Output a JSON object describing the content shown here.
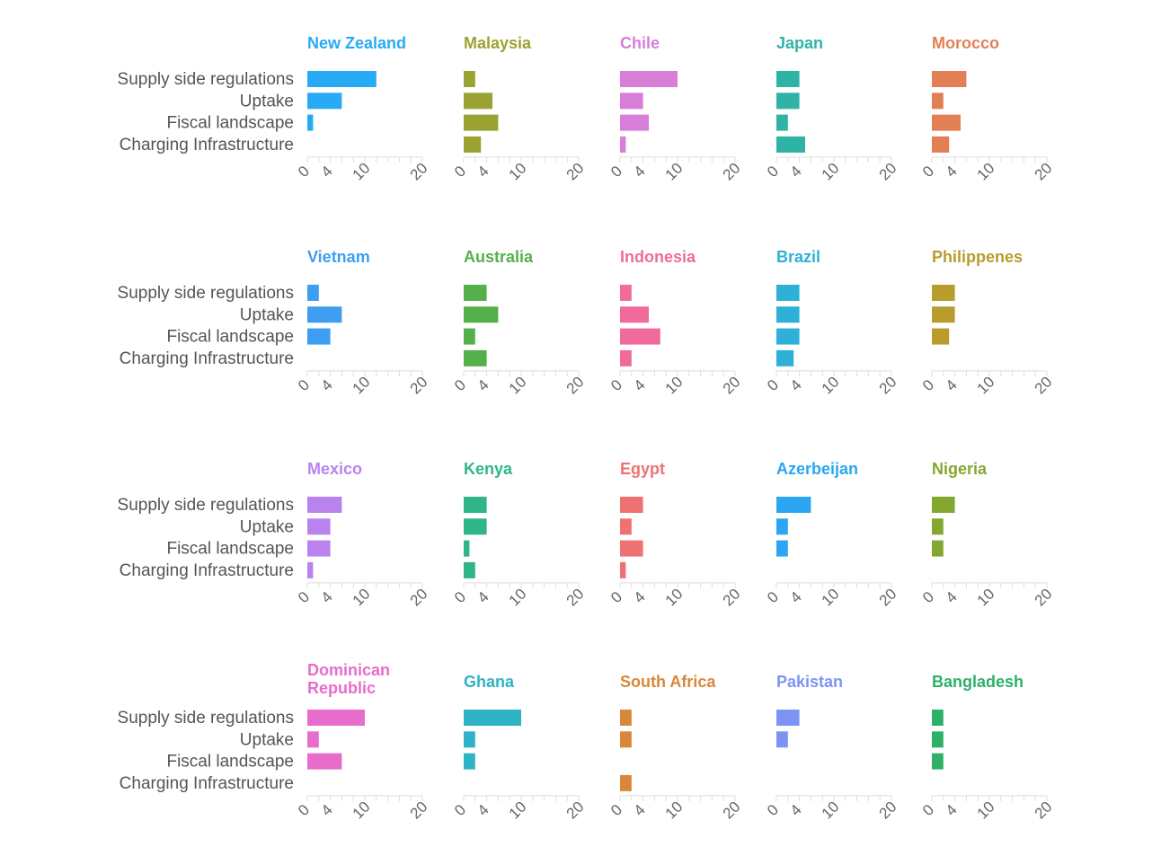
{
  "chart_data": {
    "type": "bar",
    "orientation": "horizontal",
    "layout": "small-multiples",
    "categories": [
      "Supply side regulations",
      "Uptake",
      "Fiscal landscape",
      "Charging Infrastructure"
    ],
    "xticks": [
      "0",
      "4",
      "10",
      "20"
    ],
    "xlim": [
      0,
      20
    ],
    "panels": [
      {
        "title": "New Zealand",
        "color": "#29aaf4",
        "values": [
          12,
          6,
          1,
          0
        ]
      },
      {
        "title": "Malaysia",
        "color": "#9aa332",
        "values": [
          2,
          5,
          6,
          3
        ]
      },
      {
        "title": "Chile",
        "color": "#d77ed9",
        "values": [
          10,
          4,
          5,
          1
        ]
      },
      {
        "title": "Japan",
        "color": "#2fb3a6",
        "values": [
          4,
          4,
          2,
          5
        ]
      },
      {
        "title": "Morocco",
        "color": "#e37f55",
        "values": [
          6,
          2,
          5,
          3
        ]
      },
      {
        "title": "Vietnam",
        "color": "#3d9ef2",
        "values": [
          2,
          6,
          4,
          0
        ]
      },
      {
        "title": "Australia",
        "color": "#54b04a",
        "values": [
          4,
          6,
          2,
          4
        ]
      },
      {
        "title": "Indonesia",
        "color": "#f06b9c",
        "values": [
          2,
          5,
          7,
          2
        ]
      },
      {
        "title": "Brazil",
        "color": "#2fb0d8",
        "values": [
          4,
          4,
          4,
          3
        ]
      },
      {
        "title": "Philippenes",
        "color": "#b89c2c",
        "values": [
          4,
          4,
          3,
          0
        ]
      },
      {
        "title": "Mexico",
        "color": "#b983ef",
        "values": [
          6,
          4,
          4,
          1
        ]
      },
      {
        "title": "Kenya",
        "color": "#2fb586",
        "values": [
          4,
          4,
          1,
          2
        ]
      },
      {
        "title": "Egypt",
        "color": "#ef7272",
        "values": [
          4,
          2,
          4,
          1
        ]
      },
      {
        "title": "Azerbeijan",
        "color": "#2aa7f0",
        "values": [
          6,
          2,
          2,
          0
        ]
      },
      {
        "title": "Nigeria",
        "color": "#84a82f",
        "values": [
          4,
          2,
          2,
          0
        ]
      },
      {
        "title": "Dominican\nRepublic",
        "color": "#e86ccc",
        "values": [
          10,
          2,
          6,
          0
        ]
      },
      {
        "title": "Ghana",
        "color": "#2eb4c6",
        "values": [
          10,
          2,
          2,
          0
        ]
      },
      {
        "title": "South Africa",
        "color": "#d9873a",
        "values": [
          2,
          2,
          0,
          2
        ]
      },
      {
        "title": "Pakistan",
        "color": "#7d94f5",
        "values": [
          4,
          2,
          0,
          0
        ]
      },
      {
        "title": "Bangladesh",
        "color": "#2fb069",
        "values": [
          2,
          2,
          2,
          0
        ]
      }
    ]
  }
}
